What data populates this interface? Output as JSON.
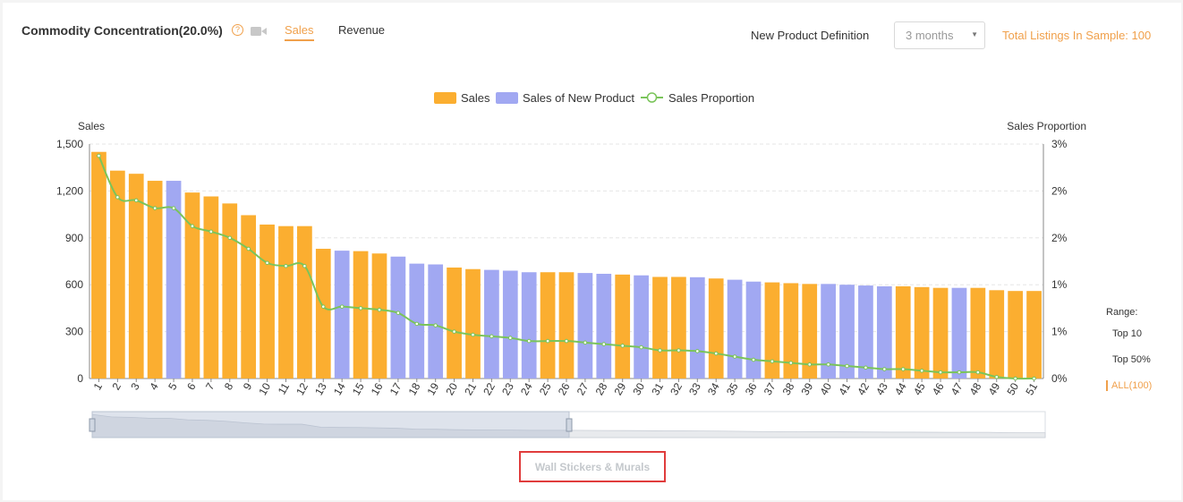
{
  "header": {
    "title": "Commodity Concentration(20.0%)",
    "help_glyph": "?",
    "tabs": [
      {
        "label": "Sales",
        "active": true
      },
      {
        "label": "Revenue",
        "active": false
      }
    ],
    "new_product_label": "New Product Definition",
    "new_product_value": "3 months",
    "total_listings": "Total Listings In Sample: 100"
  },
  "range": {
    "title": "Range:",
    "options": [
      "Top 10",
      "Top 50%",
      "ALL(100)"
    ],
    "selected": "ALL(100)"
  },
  "category": "Wall Stickers & Murals",
  "colors": {
    "sales": "#fbae30",
    "new_product": "#a1a8f2",
    "proportion_line": "#7ac45a",
    "accent": "#f0a04b"
  },
  "chart_data": {
    "type": "bar",
    "legend": [
      "Sales",
      "Sales of New Product",
      "Sales Proportion"
    ],
    "legend_position": "top",
    "ylabel_left": "Sales",
    "ylabel_right": "Sales Proportion",
    "ylim_left": [
      0,
      1500
    ],
    "yticks_left": [
      "0",
      "300",
      "600",
      "900",
      "1,200",
      "1,500"
    ],
    "ylim_right": [
      0,
      3
    ],
    "yticks_right": [
      "0%",
      "1%",
      "1%",
      "2%",
      "2%",
      "3%"
    ],
    "categories": [
      "1",
      "2",
      "3",
      "4",
      "5",
      "6",
      "7",
      "8",
      "9",
      "10",
      "11",
      "12",
      "13",
      "14",
      "15",
      "16",
      "17",
      "18",
      "19",
      "20",
      "21",
      "22",
      "23",
      "24",
      "25",
      "26",
      "27",
      "28",
      "29",
      "30",
      "31",
      "32",
      "33",
      "34",
      "35",
      "36",
      "37",
      "38",
      "39",
      "40",
      "41",
      "42",
      "43",
      "44",
      "45",
      "46",
      "47",
      "48",
      "49",
      "50",
      "51"
    ],
    "values": [
      1450,
      1330,
      1310,
      1265,
      1265,
      1190,
      1165,
      1120,
      1045,
      985,
      975,
      975,
      830,
      818,
      815,
      800,
      780,
      735,
      730,
      710,
      700,
      695,
      690,
      680,
      680,
      680,
      675,
      670,
      665,
      660,
      650,
      650,
      648,
      640,
      632,
      620,
      615,
      610,
      605,
      605,
      600,
      595,
      590,
      590,
      585,
      580,
      580,
      580,
      565,
      560,
      560
    ],
    "new_product": [
      false,
      false,
      false,
      false,
      true,
      false,
      false,
      false,
      false,
      false,
      false,
      false,
      false,
      true,
      false,
      false,
      true,
      true,
      true,
      false,
      false,
      true,
      true,
      true,
      false,
      false,
      true,
      true,
      false,
      true,
      false,
      false,
      true,
      false,
      true,
      true,
      false,
      false,
      false,
      true,
      true,
      true,
      true,
      false,
      false,
      false,
      true,
      false,
      false,
      false,
      false
    ],
    "proportion": [
      2.85,
      2.32,
      2.28,
      2.18,
      2.18,
      1.95,
      1.88,
      1.8,
      1.66,
      1.48,
      1.44,
      1.44,
      0.92,
      0.92,
      0.9,
      0.88,
      0.84,
      0.7,
      0.68,
      0.6,
      0.56,
      0.54,
      0.52,
      0.48,
      0.48,
      0.48,
      0.46,
      0.44,
      0.42,
      0.4,
      0.36,
      0.36,
      0.35,
      0.32,
      0.28,
      0.24,
      0.22,
      0.2,
      0.18,
      0.18,
      0.16,
      0.14,
      0.12,
      0.12,
      0.1,
      0.08,
      0.08,
      0.08,
      0.02,
      0.0,
      0.0
    ],
    "grid": true
  }
}
